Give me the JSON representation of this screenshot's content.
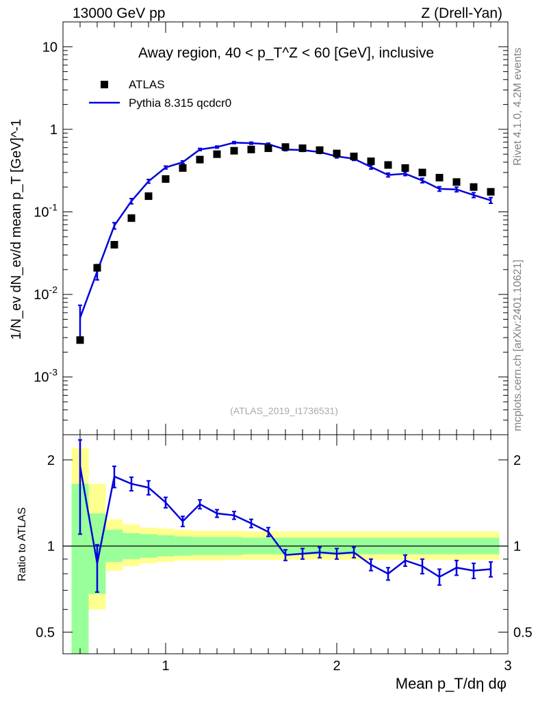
{
  "header": {
    "left": "13000 GeV pp",
    "right": "Z (Drell-Yan)"
  },
  "side_labels": {
    "rivet": "Rivet 4.1.0,  4.2M events",
    "mcplots": "mcplots.cern.ch [arXiv:2401.10621]"
  },
  "colors": {
    "mc": "#0000dd",
    "data": "#000000",
    "band_inner": "#99ff99",
    "band_outer": "#ffff8f"
  },
  "chart_data": [
    {
      "type": "line",
      "title": "Away region, 40 < p_T^Z < 60 [GeV], inclusive",
      "ylabel": "1/N_ev dN_ev/d mean p_T [GeV]^-1",
      "xlabel": "",
      "yscale": "log",
      "xlim": [
        0.4,
        3.0
      ],
      "ylim": [
        0.0002,
        20
      ],
      "y_ticks": [
        "10^-3",
        "10^-2",
        "10^-1",
        "1",
        "10"
      ],
      "watermark": "(ATLAS_2019_I1736531)",
      "legend": {
        "position": "top-left",
        "entries": [
          "ATLAS",
          "Pythia 8.315 qcdcr0"
        ]
      },
      "x": [
        0.5,
        0.6,
        0.7,
        0.8,
        0.9,
        1.0,
        1.1,
        1.2,
        1.3,
        1.4,
        1.5,
        1.6,
        1.7,
        1.8,
        1.9,
        2.0,
        2.1,
        2.2,
        2.3,
        2.4,
        2.5,
        2.6,
        2.7,
        2.8,
        2.9
      ],
      "series": [
        {
          "name": "ATLAS",
          "style": "markers",
          "values": [
            0.0028,
            0.021,
            0.04,
            0.084,
            0.155,
            0.25,
            0.34,
            0.43,
            0.5,
            0.55,
            0.57,
            0.59,
            0.61,
            0.59,
            0.56,
            0.51,
            0.47,
            0.41,
            0.37,
            0.34,
            0.3,
            0.26,
            0.23,
            0.2,
            0.175
          ]
        },
        {
          "name": "Pythia 8.315 qcdcr0",
          "style": "line",
          "values": [
            0.0052,
            0.019,
            0.068,
            0.135,
            0.235,
            0.345,
            0.4,
            0.57,
            0.61,
            0.69,
            0.68,
            0.66,
            0.57,
            0.56,
            0.53,
            0.47,
            0.44,
            0.35,
            0.28,
            0.29,
            0.24,
            0.19,
            0.187,
            0.16,
            0.138
          ],
          "err_up": [
            0.0022,
            0.004,
            0.006,
            0.01,
            0.012,
            0.014,
            0.015,
            0.018,
            0.018,
            0.02,
            0.02,
            0.02,
            0.02,
            0.02,
            0.02,
            0.02,
            0.02,
            0.02,
            0.015,
            0.015,
            0.015,
            0.012,
            0.012,
            0.011,
            0.011
          ],
          "err_down": [
            0.0022,
            0.004,
            0.006,
            0.01,
            0.012,
            0.014,
            0.015,
            0.018,
            0.018,
            0.02,
            0.02,
            0.02,
            0.02,
            0.02,
            0.02,
            0.02,
            0.02,
            0.02,
            0.015,
            0.015,
            0.015,
            0.012,
            0.012,
            0.011,
            0.011
          ]
        }
      ]
    },
    {
      "type": "line",
      "title": "",
      "ylabel": "Ratio to ATLAS",
      "xlabel": "Mean p_T/dη dφ",
      "yscale": "log",
      "xlim": [
        0.4,
        3.0
      ],
      "ylim": [
        0.42,
        2.45
      ],
      "y_ticks": [
        "0.5",
        "1",
        "2"
      ],
      "x_ticks": [
        "1",
        "2",
        "3"
      ],
      "reference_line": 1,
      "x": [
        0.5,
        0.6,
        0.7,
        0.8,
        0.9,
        1.0,
        1.1,
        1.2,
        1.3,
        1.4,
        1.5,
        1.6,
        1.7,
        1.8,
        1.9,
        2.0,
        2.1,
        2.2,
        2.3,
        2.4,
        2.5,
        2.6,
        2.7,
        2.8,
        2.9
      ],
      "series": [
        {
          "name": "Pythia 8.315 qcdcr0",
          "values": [
            1.9,
            0.87,
            1.75,
            1.65,
            1.6,
            1.42,
            1.22,
            1.4,
            1.3,
            1.28,
            1.2,
            1.12,
            0.93,
            0.94,
            0.95,
            0.94,
            0.95,
            0.86,
            0.8,
            0.89,
            0.85,
            0.78,
            0.84,
            0.82,
            0.83
          ],
          "err_up": [
            0.45,
            0.14,
            0.15,
            0.09,
            0.09,
            0.06,
            0.05,
            0.05,
            0.04,
            0.04,
            0.04,
            0.04,
            0.04,
            0.04,
            0.04,
            0.04,
            0.04,
            0.04,
            0.04,
            0.04,
            0.05,
            0.05,
            0.05,
            0.05,
            0.05
          ],
          "err_down": [
            0.8,
            0.18,
            0.15,
            0.09,
            0.09,
            0.06,
            0.05,
            0.05,
            0.04,
            0.04,
            0.04,
            0.04,
            0.04,
            0.04,
            0.04,
            0.04,
            0.04,
            0.04,
            0.04,
            0.04,
            0.05,
            0.05,
            0.05,
            0.05,
            0.05
          ]
        }
      ],
      "bands": {
        "x_edges": [
          0.45,
          0.55,
          0.65,
          0.75,
          0.85,
          0.95,
          1.05,
          1.15,
          1.25,
          1.35,
          1.45,
          1.55,
          1.65,
          1.75,
          1.85,
          1.95,
          2.05,
          2.15,
          2.25,
          2.35,
          2.45,
          2.55,
          2.65,
          2.75,
          2.85,
          2.95
        ],
        "inner_lo": [
          0.35,
          0.68,
          0.88,
          0.9,
          0.91,
          0.92,
          0.925,
          0.93,
          0.93,
          0.93,
          0.935,
          0.935,
          0.935,
          0.935,
          0.935,
          0.935,
          0.935,
          0.935,
          0.935,
          0.935,
          0.935,
          0.935,
          0.935,
          0.935,
          0.935
        ],
        "inner_hi": [
          1.65,
          1.3,
          1.14,
          1.11,
          1.1,
          1.09,
          1.08,
          1.075,
          1.075,
          1.075,
          1.07,
          1.07,
          1.07,
          1.07,
          1.07,
          1.07,
          1.07,
          1.07,
          1.07,
          1.07,
          1.07,
          1.07,
          1.07,
          1.07,
          1.07
        ],
        "outer_lo": [
          0.33,
          0.6,
          0.82,
          0.85,
          0.87,
          0.88,
          0.89,
          0.89,
          0.89,
          0.895,
          0.895,
          0.895,
          0.895,
          0.895,
          0.895,
          0.895,
          0.895,
          0.895,
          0.895,
          0.895,
          0.895,
          0.895,
          0.895,
          0.895,
          0.895
        ],
        "outer_hi": [
          2.2,
          1.65,
          1.24,
          1.19,
          1.16,
          1.15,
          1.14,
          1.13,
          1.13,
          1.13,
          1.125,
          1.125,
          1.125,
          1.125,
          1.125,
          1.125,
          1.125,
          1.125,
          1.125,
          1.125,
          1.125,
          1.125,
          1.125,
          1.125,
          1.125
        ]
      }
    }
  ]
}
